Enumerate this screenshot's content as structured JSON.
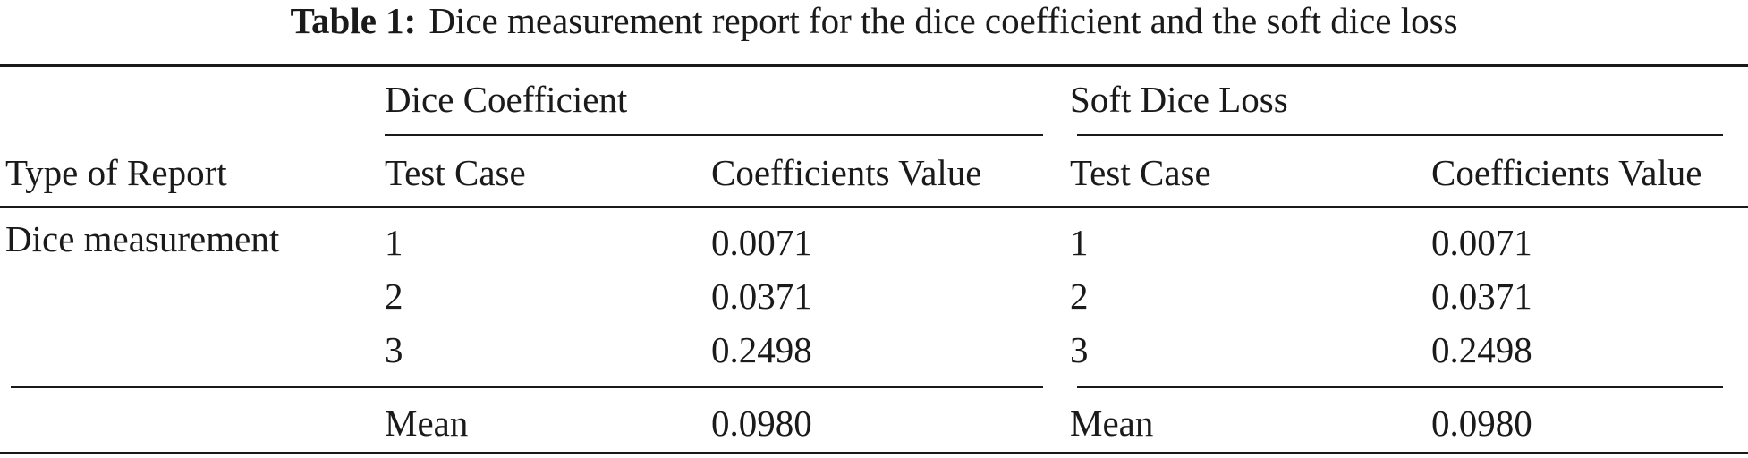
{
  "caption": {
    "label": "Table 1:",
    "text": "Dice measurement report for the dice coefficient and the soft dice loss"
  },
  "table": {
    "group_headers": [
      "Dice Coefficient",
      "Soft Dice Loss"
    ],
    "column_headers": [
      "Type of Report",
      "Test Case",
      "Coefficients Value",
      "Test Case",
      "Coefficients Value"
    ],
    "row_label": "Dice measurement",
    "rows": [
      {
        "dc_case": "1",
        "dc_value": "0.0071",
        "sdl_case": "1",
        "sdl_value": "0.0071"
      },
      {
        "dc_case": "2",
        "dc_value": "0.0371",
        "sdl_case": "2",
        "sdl_value": "0.0371"
      },
      {
        "dc_case": "3",
        "dc_value": "0.2498",
        "sdl_case": "3",
        "sdl_value": "0.2498"
      }
    ],
    "summary": {
      "dc_case": "Mean",
      "dc_value": "0.0980",
      "sdl_case": "Mean",
      "sdl_value": "0.0980"
    }
  }
}
